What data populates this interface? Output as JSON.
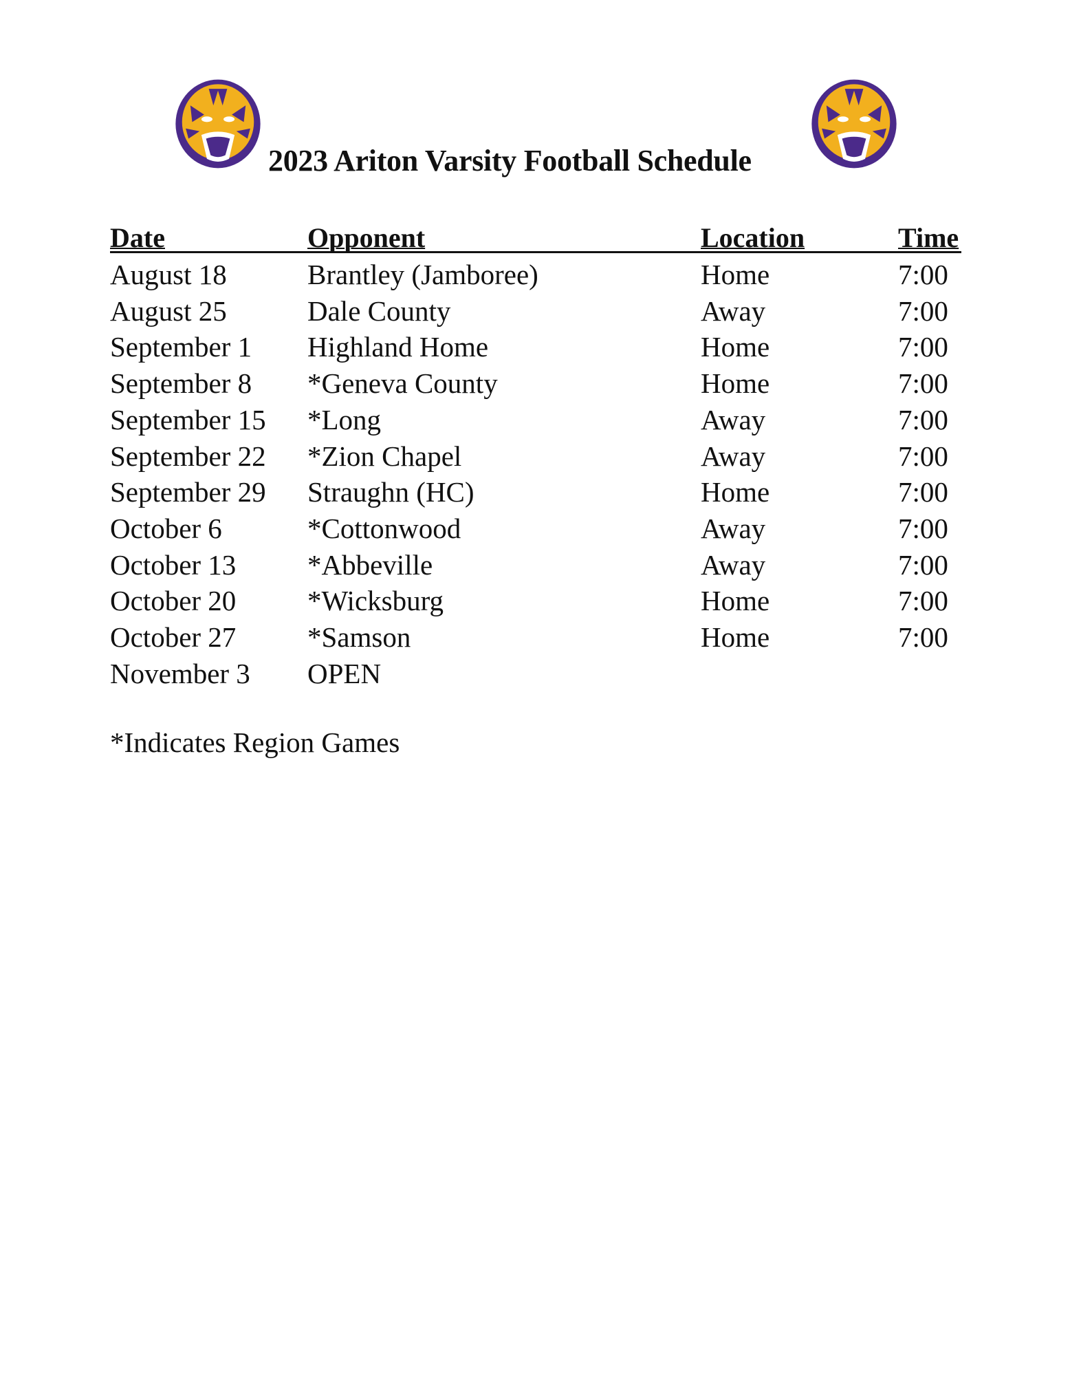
{
  "document": {
    "title": "2023 Ariton Varsity Football Schedule",
    "logo": "tiger-head-logo",
    "colors": {
      "purple": "#4b2a8a",
      "gold": "#f2b01e"
    }
  },
  "table": {
    "headers": [
      "Date",
      "Opponent",
      "Location",
      "Time"
    ],
    "rows": [
      [
        "August 18",
        "Brantley (Jamboree)",
        "Home",
        "7:00"
      ],
      [
        "August 25",
        "Dale County",
        "Away",
        "7:00"
      ],
      [
        "September 1",
        "Highland Home",
        "Home",
        "7:00"
      ],
      [
        "September 8",
        "*Geneva County",
        "Home",
        "7:00"
      ],
      [
        "September 15",
        "*Long",
        "Away",
        "7:00"
      ],
      [
        "September 22",
        "*Zion Chapel",
        "Away",
        "7:00"
      ],
      [
        "September 29",
        "Straughn (HC)",
        "Home",
        "7:00"
      ],
      [
        "October 6",
        "*Cottonwood",
        "Away",
        "7:00"
      ],
      [
        "October 13",
        "*Abbeville",
        "Away",
        "7:00"
      ],
      [
        "October 20",
        "*Wicksburg",
        "Home",
        "7:00"
      ],
      [
        "October 27",
        "*Samson",
        "Home",
        "7:00"
      ],
      [
        "November 3",
        "OPEN",
        "",
        ""
      ]
    ]
  },
  "footnote": "*Indicates Region Games"
}
